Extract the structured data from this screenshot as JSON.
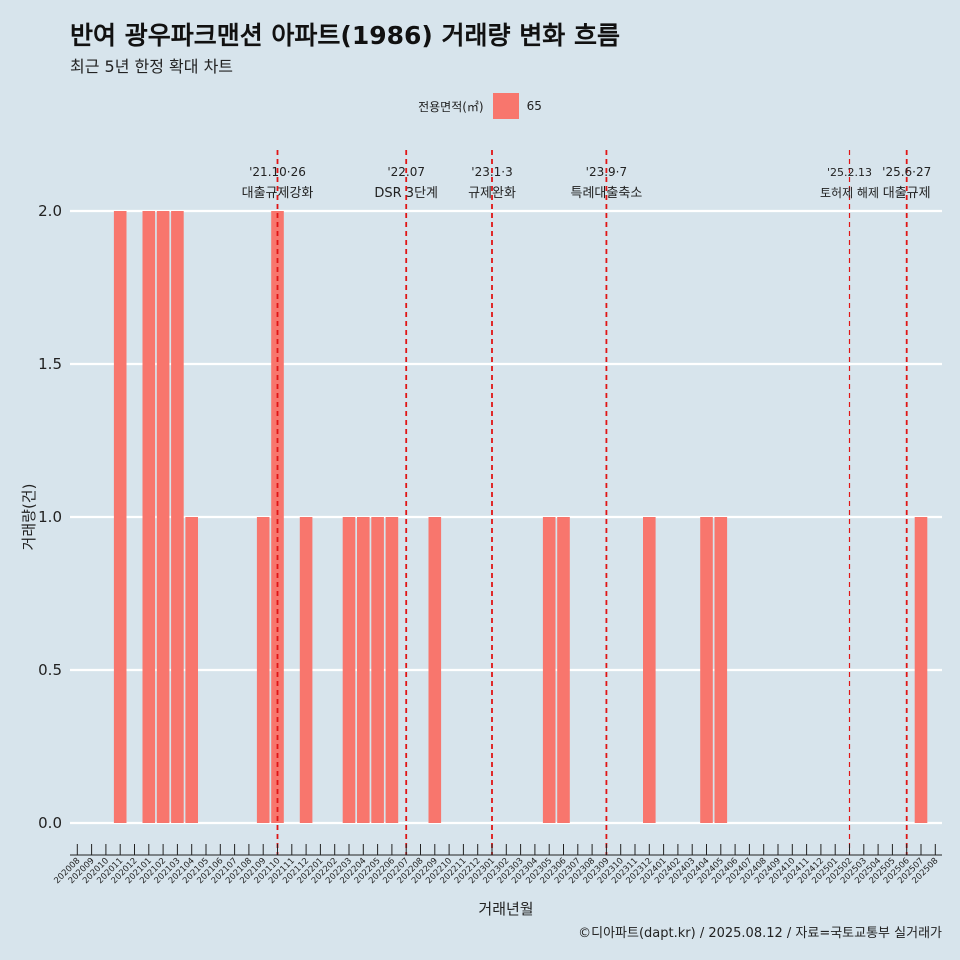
{
  "header": {
    "title": "반여 광우파크맨션 아파트(1986) 거래량 변화 흐름",
    "subtitle": "최근 5년 한정 확대 차트"
  },
  "legend": {
    "title": "전용면적(㎡)",
    "items": [
      {
        "label": "65",
        "color": "#f8766d"
      }
    ]
  },
  "caption": "©디아파트(dapt.kr) / 2025.08.12 / 자료=국토교통부 실거래가",
  "chart_data": {
    "type": "bar",
    "xlabel": "거래년월",
    "ylabel": "거래량(건)",
    "ylim": [
      0,
      2
    ],
    "yticks": [
      "0.0",
      "0.5",
      "1.0",
      "1.5",
      "2.0"
    ],
    "grid": true,
    "legend_position": "top",
    "categories": [
      "202008",
      "202009",
      "202010",
      "202011",
      "202012",
      "202101",
      "202102",
      "202103",
      "202104",
      "202105",
      "202106",
      "202107",
      "202108",
      "202109",
      "202110",
      "202111",
      "202112",
      "202201",
      "202202",
      "202203",
      "202204",
      "202205",
      "202206",
      "202207",
      "202208",
      "202209",
      "202210",
      "202211",
      "202212",
      "202301",
      "202302",
      "202303",
      "202304",
      "202305",
      "202306",
      "202307",
      "202308",
      "202309",
      "202310",
      "202311",
      "202312",
      "202401",
      "202402",
      "202403",
      "202404",
      "202405",
      "202406",
      "202407",
      "202408",
      "202409",
      "202410",
      "202411",
      "202412",
      "202501",
      "202502",
      "202503",
      "202504",
      "202505",
      "202506",
      "202507",
      "202508"
    ],
    "series": [
      {
        "name": "65",
        "color": "#f8766d",
        "values": [
          0,
          0,
          0,
          2,
          0,
          2,
          2,
          2,
          1,
          0,
          0,
          0,
          0,
          1,
          2,
          0,
          1,
          0,
          0,
          1,
          1,
          1,
          1,
          0,
          0,
          1,
          0,
          0,
          0,
          0,
          0,
          0,
          0,
          1,
          1,
          0,
          0,
          0,
          0,
          0,
          1,
          0,
          0,
          0,
          1,
          1,
          0,
          0,
          0,
          0,
          0,
          0,
          0,
          0,
          0,
          0,
          0,
          0,
          0,
          1,
          0
        ]
      }
    ],
    "annotations": [
      {
        "x": "202110",
        "date": "'21.10·26",
        "label": "대출규제강화"
      },
      {
        "x": "202207",
        "date": "'22.07",
        "label": "DSR 3단계"
      },
      {
        "x": "202301",
        "date": "'23.1·3",
        "label": "규제완화"
      },
      {
        "x": "202309",
        "date": "'23.9·7",
        "label": "특례대출축소"
      },
      {
        "x": "202502",
        "date": "'25.2.13",
        "label": "토허제 해제"
      },
      {
        "x": "202506",
        "date": "'25.6·27",
        "label": "대출규제"
      }
    ]
  }
}
